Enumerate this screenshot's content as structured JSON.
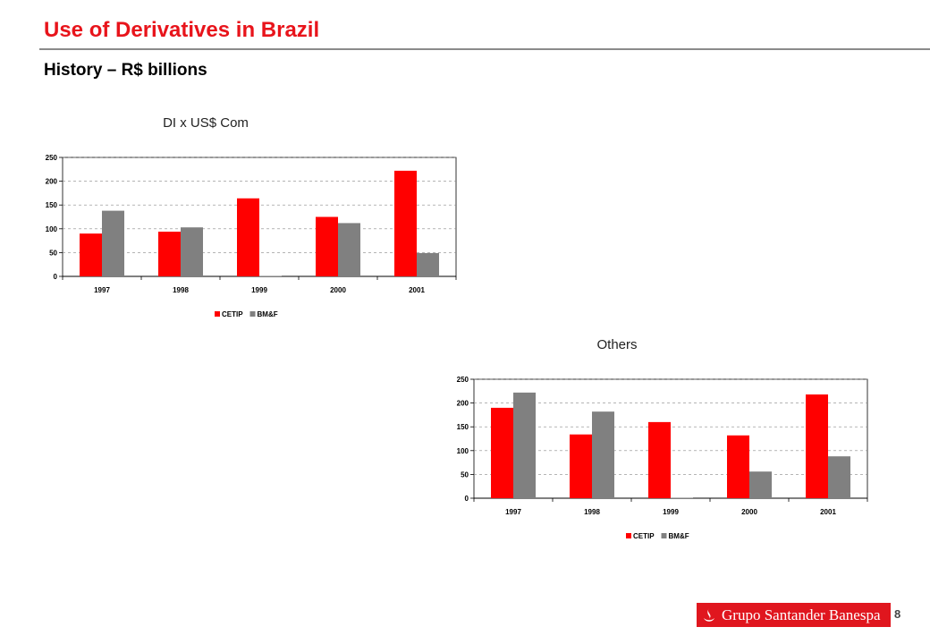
{
  "slide": {
    "title": "Use of Derivatives in Brazil",
    "subtitle": "History – R$ billions",
    "page_number": "8",
    "logo_text": "Grupo Santander Banespa"
  },
  "colors": {
    "accent": "#e8141b",
    "cetip": "#ff0000",
    "bmf": "#808080"
  },
  "chart_data": [
    {
      "type": "bar",
      "title": "DI x US$ Com",
      "categories": [
        "1997",
        "1998",
        "1999",
        "2000",
        "2001"
      ],
      "series": [
        {
          "name": "CETIP",
          "values": [
            90,
            94,
            164,
            125,
            222
          ]
        },
        {
          "name": "BM&F",
          "values": [
            138,
            103,
            1,
            112,
            49
          ]
        }
      ],
      "ylim": [
        0,
        250
      ],
      "yticks": [
        "0",
        "50",
        "100",
        "150",
        "200",
        "250"
      ],
      "grid": true,
      "legend": "bottom"
    },
    {
      "type": "bar",
      "title": "Others",
      "categories": [
        "1997",
        "1998",
        "1999",
        "2000",
        "2001"
      ],
      "series": [
        {
          "name": "CETIP",
          "values": [
            190,
            134,
            160,
            132,
            218
          ]
        },
        {
          "name": "BM&F",
          "values": [
            222,
            182,
            1,
            56,
            88
          ]
        }
      ],
      "ylim": [
        0,
        250
      ],
      "yticks": [
        "0",
        "50",
        "100",
        "150",
        "200",
        "250"
      ],
      "grid": true,
      "legend": "bottom"
    }
  ]
}
